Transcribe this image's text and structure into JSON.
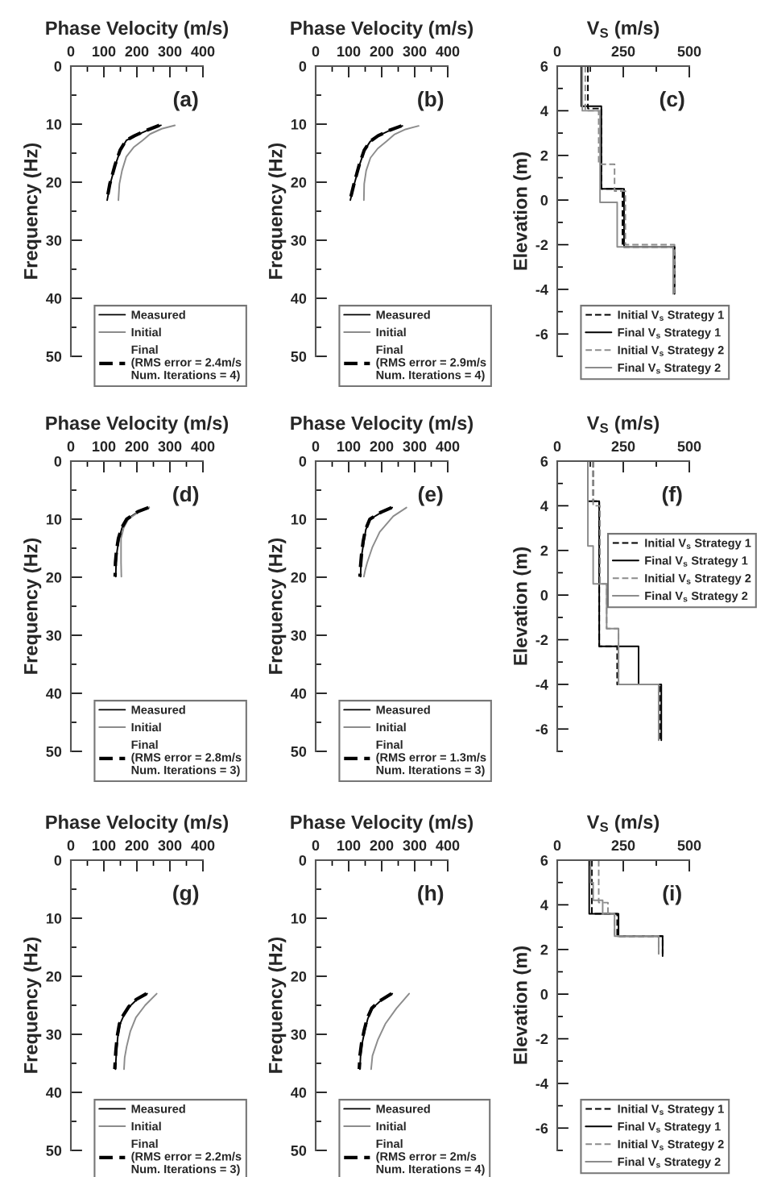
{
  "chart_data": [
    {
      "type": "line",
      "xlabel": "Phase Velocity (m/s)",
      "ylabel": "Frequency (Hz)",
      "xlim": [
        0,
        400
      ],
      "ylim": [
        50,
        0
      ],
      "xticks": [
        0,
        {
          "value": 50,
          "label": null
        },
        100,
        {
          "value": 150,
          "label": null
        },
        200,
        {
          "value": 250,
          "label": null
        },
        300,
        {
          "value": 350,
          "label": null
        },
        400
      ],
      "yticks": [
        0,
        {
          "value": 5,
          "label": null
        },
        10,
        {
          "value": 15,
          "label": null
        },
        20,
        {
          "value": 25,
          "label": null
        },
        30,
        {
          "value": 35,
          "label": null
        },
        40,
        {
          "value": 45,
          "label": null
        },
        50
      ],
      "legend": "bottom right",
      "annotations": [
        "(a)"
      ],
      "series": [
        {
          "name": "Measured",
          "color": "#000000",
          "line_style": "solid",
          "x": [
            273,
            235,
            195,
            168,
            150,
            135,
            119,
            110
          ],
          "values": [
            10.2,
            11,
            12,
            12.8,
            14.5,
            17,
            20.3,
            23.1
          ]
        },
        {
          "name": "Initial",
          "color": "#8c8c8c",
          "line_style": "solid",
          "x": [
            315,
            275,
            240,
            217,
            190,
            168,
            155,
            147,
            144
          ],
          "values": [
            10.2,
            10.8,
            11.7,
            12.8,
            14,
            15.6,
            18,
            20.3,
            23.1
          ]
        },
        {
          "name": "Final\n(RMS error = 2.4m/s\nNum. Iterations = 4)",
          "color": "#000000",
          "line_style": "dashed",
          "x": [
            268,
            232,
            193,
            167,
            149,
            134,
            118,
            109
          ],
          "values": [
            10.2,
            11,
            12,
            12.8,
            14.5,
            17,
            20.3,
            23.1
          ]
        }
      ]
    },
    {
      "type": "line",
      "xlabel": "Phase Velocity (m/s)",
      "ylabel": "Frequency (Hz)",
      "xlim": [
        0,
        400
      ],
      "ylim": [
        50,
        0
      ],
      "xticks": [
        0,
        {
          "value": 50,
          "label": null
        },
        100,
        {
          "value": 150,
          "label": null
        },
        200,
        {
          "value": 250,
          "label": null
        },
        300,
        {
          "value": 350,
          "label": null
        },
        400
      ],
      "yticks": [
        0,
        {
          "value": 5,
          "label": null
        },
        10,
        {
          "value": 15,
          "label": null
        },
        20,
        {
          "value": 25,
          "label": null
        },
        30,
        {
          "value": 35,
          "label": null
        },
        40,
        {
          "value": 45,
          "label": null
        },
        50
      ],
      "legend": "bottom right",
      "annotations": [
        "(b)"
      ],
      "series": [
        {
          "name": "Measured",
          "color": "#000000",
          "line_style": "solid",
          "x": [
            263,
            228,
            190,
            165,
            148,
            133,
            117,
            105
          ],
          "values": [
            10.3,
            11,
            12,
            13,
            14.5,
            17,
            20.3,
            23.1
          ]
        },
        {
          "name": "Initial",
          "color": "#8c8c8c",
          "line_style": "solid",
          "x": [
            312,
            272,
            238,
            214,
            188,
            166,
            153,
            147,
            146
          ],
          "values": [
            10.3,
            10.9,
            11.8,
            13,
            14.2,
            15.8,
            18,
            20.3,
            23.1
          ]
        },
        {
          "name": "Final\n(RMS error = 2.9m/s\nNum. Iterations = 4)",
          "color": "#000000",
          "line_style": "dashed",
          "x": [
            260,
            226,
            189,
            164,
            147,
            132,
            116,
            104
          ],
          "values": [
            10.3,
            11,
            12,
            13,
            14.5,
            17,
            20.3,
            23.1
          ]
        }
      ]
    },
    {
      "type": "line",
      "xlabel": "V$_{S}$ (m/s)",
      "ylabel": "Elevation (m)",
      "xlim": [
        0,
        500
      ],
      "ylim": [
        -7,
        6
      ],
      "xticks": [
        0,
        {
          "value": 125,
          "label": null
        },
        250,
        {
          "value": 375,
          "label": null
        },
        500
      ],
      "yticks": [
        6,
        {
          "value": 5,
          "label": null
        },
        4,
        {
          "value": 3,
          "label": null
        },
        2,
        {
          "value": 1,
          "label": null
        },
        0,
        {
          "value": -1,
          "label": null
        },
        -2,
        {
          "value": -3,
          "label": null
        },
        -4,
        {
          "value": -5,
          "label": null
        },
        -6,
        {
          "value": -7,
          "label": null
        }
      ],
      "legend": "bottom right",
      "annotations": [
        "(c)"
      ],
      "series": [
        {
          "name": "Initial V$_{s}$ Strategy 1",
          "color": "#000000",
          "line_style": "dashed",
          "x": [
            116,
            116,
            167,
            167,
            247,
            247,
            444,
            444
          ],
          "values": [
            6,
            4.1,
            4.1,
            0.5,
            0.5,
            -2.1,
            -2.1,
            -4.2
          ]
        },
        {
          "name": "Final V$_{s}$ Strategy 1",
          "color": "#000000",
          "line_style": "solid",
          "x": [
            91,
            91,
            167,
            167,
            253,
            253,
            444,
            444
          ],
          "values": [
            6,
            4.2,
            4.2,
            0.5,
            0.5,
            -2.1,
            -2.1,
            -4.2
          ]
        },
        {
          "name": "Initial V$_{s}$ Strategy 2",
          "color": "#8c8c8c",
          "line_style": "dashed",
          "x": [
            106,
            106,
            157,
            157,
            217,
            217,
            258,
            258,
            444,
            444
          ],
          "values": [
            6,
            4,
            4,
            1.6,
            1.6,
            0.4,
            0.4,
            -2,
            -2,
            -4.2
          ]
        },
        {
          "name": "Final V$_{s}$ Strategy 2",
          "color": "#8c8c8c",
          "line_style": "solid",
          "x": [
            95,
            95,
            162,
            162,
            227,
            227,
            439,
            439
          ],
          "values": [
            6,
            4,
            4,
            -0.1,
            -0.1,
            -2.1,
            -2.1,
            -4.2
          ]
        }
      ]
    },
    {
      "type": "line",
      "xlabel": "Phase Velocity (m/s)",
      "ylabel": "Frequency (Hz)",
      "xlim": [
        0,
        400
      ],
      "ylim": [
        50,
        0
      ],
      "xticks": [
        0,
        {
          "value": 50,
          "label": null
        },
        100,
        {
          "value": 150,
          "label": null
        },
        200,
        {
          "value": 250,
          "label": null
        },
        300,
        {
          "value": 350,
          "label": null
        },
        400
      ],
      "yticks": [
        0,
        {
          "value": 5,
          "label": null
        },
        10,
        {
          "value": 15,
          "label": null
        },
        20,
        {
          "value": 25,
          "label": null
        },
        30,
        {
          "value": 35,
          "label": null
        },
        40,
        {
          "value": 45,
          "label": null
        },
        50
      ],
      "legend": "bottom right",
      "annotations": [
        "(d)"
      ],
      "series": [
        {
          "name": "Measured",
          "color": "#000000",
          "line_style": "solid",
          "x": [
            237,
            205,
            170,
            155,
            146,
            140,
            137,
            136
          ],
          "values": [
            8,
            8.7,
            10,
            11.5,
            13.3,
            15.5,
            17.5,
            19.9
          ]
        },
        {
          "name": "Initial",
          "color": "#8c8c8c",
          "line_style": "solid",
          "x": [
            237,
            207,
            174,
            160,
            152,
            152,
            152,
            153
          ],
          "values": [
            8,
            8.7,
            10,
            11.5,
            13.3,
            15.5,
            17.5,
            19.9
          ]
        },
        {
          "name": "Final\n(RMS error = 2.8m/s\nNum. Iterations = 3)",
          "color": "#000000",
          "line_style": "dashed",
          "x": [
            235,
            203,
            169,
            154,
            144,
            138,
            135,
            134
          ],
          "values": [
            8,
            8.7,
            10,
            11.5,
            13.3,
            15.5,
            17.5,
            19.9
          ]
        }
      ]
    },
    {
      "type": "line",
      "xlabel": "Phase Velocity (m/s)",
      "ylabel": "Frequency (Hz)",
      "xlim": [
        0,
        400
      ],
      "ylim": [
        50,
        0
      ],
      "xticks": [
        0,
        {
          "value": 50,
          "label": null
        },
        100,
        {
          "value": 150,
          "label": null
        },
        200,
        {
          "value": 250,
          "label": null
        },
        300,
        {
          "value": 350,
          "label": null
        },
        400
      ],
      "yticks": [
        0,
        {
          "value": 5,
          "label": null
        },
        10,
        {
          "value": 15,
          "label": null
        },
        20,
        {
          "value": 25,
          "label": null
        },
        30,
        {
          "value": 35,
          "label": null
        },
        40,
        {
          "value": 45,
          "label": null
        },
        50
      ],
      "legend": "bottom right",
      "annotations": [
        "(e)"
      ],
      "series": [
        {
          "name": "Measured",
          "color": "#000000",
          "line_style": "solid",
          "x": [
            232,
            200,
            165,
            152,
            146,
            140,
            137,
            136
          ],
          "values": [
            8,
            8.8,
            10,
            11.8,
            13.8,
            16,
            18,
            19.9
          ]
        },
        {
          "name": "Initial",
          "color": "#8c8c8c",
          "line_style": "solid",
          "x": [
            275,
            235,
            194,
            172,
            156,
            150,
            146
          ],
          "values": [
            8,
            9.5,
            12.2,
            14.8,
            17.5,
            18.8,
            19.9
          ]
        },
        {
          "name": "Final\n(RMS error = 1.3m/s\nNum. Iterations = 3)",
          "color": "#000000",
          "line_style": "dashed",
          "x": [
            230,
            198,
            164,
            151,
            144,
            139,
            136,
            134
          ],
          "values": [
            8,
            8.8,
            10,
            11.8,
            13.8,
            16,
            18,
            19.9
          ]
        }
      ]
    },
    {
      "type": "line",
      "xlabel": "V$_{S}$ (m/s)",
      "ylabel": "Elevation (m)",
      "xlim": [
        0,
        500
      ],
      "ylim": [
        -7,
        6
      ],
      "xticks": [
        0,
        {
          "value": 125,
          "label": null
        },
        250,
        {
          "value": 375,
          "label": null
        },
        500
      ],
      "yticks": [
        6,
        {
          "value": 5,
          "label": null
        },
        4,
        {
          "value": 3,
          "label": null
        },
        2,
        {
          "value": 1,
          "label": null
        },
        0,
        {
          "value": -1,
          "label": null
        },
        -2,
        {
          "value": -3,
          "label": null
        },
        -4,
        {
          "value": -5,
          "label": null
        },
        -6,
        {
          "value": -7,
          "label": null
        }
      ],
      "legend": "right",
      "annotations": [
        "(f)"
      ],
      "series": [
        {
          "name": "Initial V$_{s}$ Strategy 1",
          "color": "#000000",
          "line_style": "dashed",
          "x": [
            136,
            136,
            159,
            159,
            227,
            227,
            389,
            389
          ],
          "values": [
            6,
            4.2,
            4.2,
            -2.3,
            -2.3,
            -4,
            -4,
            -6.5
          ]
        },
        {
          "name": "Final V$_{s}$ Strategy 1",
          "color": "#000000",
          "line_style": "solid",
          "x": [
            116,
            116,
            159,
            159,
            308,
            308,
            394,
            394
          ],
          "values": [
            6,
            4.2,
            4.2,
            -2.3,
            -2.3,
            -4,
            -4,
            -6.5
          ]
        },
        {
          "name": "Initial V$_{s}$ Strategy 2",
          "color": "#8c8c8c",
          "line_style": "dashed",
          "x": [
            136,
            136,
            162,
            162,
            187,
            187,
            232,
            232,
            384,
            384
          ],
          "values": [
            6,
            4,
            4,
            0.5,
            0.5,
            -1.5,
            -1.5,
            -4,
            -4,
            -6.5
          ]
        },
        {
          "name": "Final V$_{s}$ Strategy 2",
          "color": "#8c8c8c",
          "line_style": "solid",
          "x": [
            116,
            116,
            136,
            136,
            187,
            187,
            232,
            232,
            384,
            384
          ],
          "values": [
            6,
            2.2,
            2.2,
            0.5,
            0.5,
            -1.5,
            -1.5,
            -4,
            -4,
            -6.5
          ]
        }
      ]
    },
    {
      "type": "line",
      "xlabel": "Phase Velocity (m/s)",
      "ylabel": "Frequency (Hz)",
      "xlim": [
        0,
        400
      ],
      "ylim": [
        50,
        0
      ],
      "xticks": [
        0,
        {
          "value": 50,
          "label": null
        },
        100,
        {
          "value": 150,
          "label": null
        },
        200,
        {
          "value": 250,
          "label": null
        },
        300,
        {
          "value": 350,
          "label": null
        },
        400
      ],
      "yticks": [
        0,
        {
          "value": 5,
          "label": null
        },
        10,
        {
          "value": 15,
          "label": null
        },
        20,
        {
          "value": 25,
          "label": null
        },
        30,
        {
          "value": 35,
          "label": null
        },
        40,
        {
          "value": 45,
          "label": null
        },
        50
      ],
      "legend": "bottom right",
      "annotations": [
        "(g)"
      ],
      "series": [
        {
          "name": "Measured",
          "color": "#000000",
          "line_style": "solid",
          "x": [
            231,
            200,
            178,
            160,
            149,
            142,
            138,
            135
          ],
          "values": [
            23,
            24,
            25.2,
            26.8,
            28.2,
            30.5,
            33,
            36
          ]
        },
        {
          "name": "Initial",
          "color": "#8c8c8c",
          "line_style": "solid",
          "x": [
            260,
            225,
            197,
            180,
            169,
            163,
            161
          ],
          "values": [
            23,
            25,
            27.1,
            29.5,
            32.1,
            34,
            36
          ]
        },
        {
          "name": "Final\n(RMS error = 2.2m/s\nNum. Iterations = 3)",
          "color": "#000000",
          "line_style": "dashed",
          "x": [
            229,
            198,
            176,
            158,
            147,
            140,
            136,
            133
          ],
          "values": [
            23,
            24,
            25.2,
            26.8,
            28.2,
            30.5,
            33,
            36
          ]
        }
      ]
    },
    {
      "type": "line",
      "xlabel": "Phase Velocity (m/s)",
      "ylabel": "Frequency (Hz)",
      "xlim": [
        0,
        400
      ],
      "ylim": [
        50,
        0
      ],
      "xticks": [
        0,
        {
          "value": 50,
          "label": null
        },
        100,
        {
          "value": 150,
          "label": null
        },
        200,
        {
          "value": 250,
          "label": null
        },
        300,
        {
          "value": 350,
          "label": null
        },
        400
      ],
      "yticks": [
        0,
        {
          "value": 5,
          "label": null
        },
        10,
        {
          "value": 15,
          "label": null
        },
        20,
        {
          "value": 25,
          "label": null
        },
        30,
        {
          "value": 35,
          "label": null
        },
        40,
        {
          "value": 45,
          "label": null
        },
        50
      ],
      "legend": "bottom right",
      "annotations": [
        "(h)"
      ],
      "series": [
        {
          "name": "Measured",
          "color": "#000000",
          "line_style": "solid",
          "x": [
            232,
            195,
            172,
            158,
            149,
            141,
            136,
            134
          ],
          "values": [
            23,
            24.3,
            25.5,
            27.3,
            29.3,
            31.5,
            33.7,
            36
          ]
        },
        {
          "name": "Initial",
          "color": "#8c8c8c",
          "line_style": "solid",
          "x": [
            283,
            245,
            211,
            188,
            172,
            168
          ],
          "values": [
            23,
            25.5,
            28.2,
            31,
            33.7,
            36
          ]
        },
        {
          "name": "Final\n(RMS error = 2m/s\nNum. Iterations = 4)",
          "color": "#000000",
          "line_style": "dashed",
          "x": [
            230,
            193,
            170,
            156,
            147,
            139,
            134,
            132
          ],
          "values": [
            23,
            24.3,
            25.5,
            27.3,
            29.3,
            31.5,
            33.7,
            36
          ]
        }
      ]
    },
    {
      "type": "line",
      "xlabel": "V$_{S}$ (m/s)",
      "ylabel": "Elevation (m)",
      "xlim": [
        0,
        500
      ],
      "ylim": [
        -7,
        6
      ],
      "xticks": [
        0,
        {
          "value": 125,
          "label": null
        },
        250,
        {
          "value": 375,
          "label": null
        },
        500
      ],
      "yticks": [
        6,
        {
          "value": 5,
          "label": null
        },
        4,
        {
          "value": 3,
          "label": null
        },
        2,
        {
          "value": 1,
          "label": null
        },
        0,
        {
          "value": -1,
          "label": null
        },
        -2,
        {
          "value": -3,
          "label": null
        },
        -4,
        {
          "value": -5,
          "label": null
        },
        -6,
        {
          "value": -7,
          "label": null
        }
      ],
      "legend": "bottom right",
      "annotations": [
        "(i)"
      ],
      "series": [
        {
          "name": "Initial V$_{s}$ Strategy 1",
          "color": "#000000",
          "line_style": "dashed",
          "x": [
            131,
            131,
            227,
            227,
            399,
            399
          ],
          "values": [
            6,
            3.6,
            3.6,
            2.6,
            2.6,
            1.8
          ]
        },
        {
          "name": "Final V$_{s}$ Strategy 1",
          "color": "#000000",
          "line_style": "solid",
          "x": [
            121,
            121,
            232,
            232,
            399,
            399
          ],
          "values": [
            6,
            3.6,
            3.6,
            2.6,
            2.6,
            1.7
          ]
        },
        {
          "name": "Initial V$_{s}$ Strategy 2",
          "color": "#8c8c8c",
          "line_style": "dashed",
          "x": [
            157,
            157,
            192,
            192,
            217,
            217,
            384,
            384
          ],
          "values": [
            6,
            4.1,
            4.1,
            3.6,
            3.6,
            2.6,
            2.6,
            1.8
          ]
        },
        {
          "name": "Final V$_{s}$ Strategy 2",
          "color": "#8c8c8c",
          "line_style": "solid",
          "x": [
            126,
            126,
            136,
            136,
            172,
            172,
            217,
            217,
            384,
            384
          ],
          "values": [
            6,
            5,
            5,
            4.2,
            4.2,
            3.6,
            3.6,
            2.6,
            2.6,
            1.8
          ]
        }
      ]
    }
  ]
}
